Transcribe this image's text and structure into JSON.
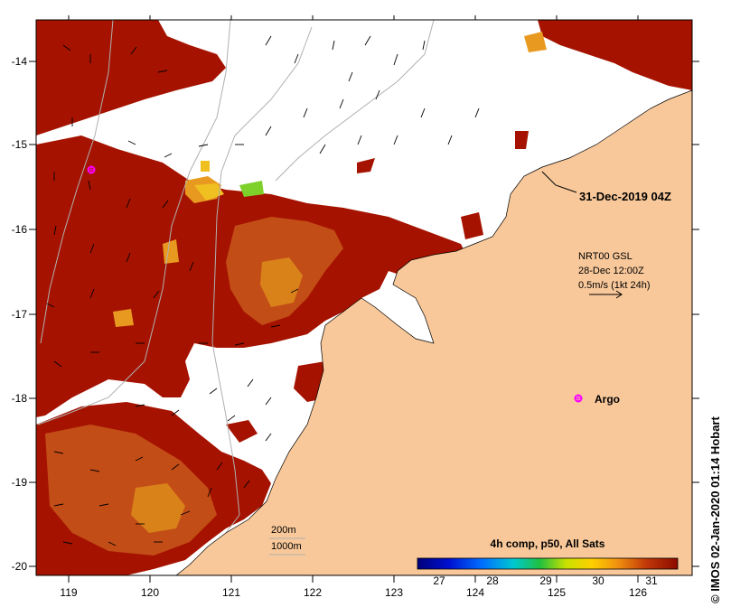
{
  "map": {
    "x_ticks": [
      "119",
      "120",
      "121",
      "122",
      "123",
      "124",
      "125",
      "126"
    ],
    "y_ticks": [
      "-14",
      "-15",
      "-16",
      "-17",
      "-18",
      "-19",
      "-20"
    ],
    "date_label": "31-Dec-2019 04Z",
    "argo_label": "Argo",
    "credit": "© IMOS 02-Jan-2020 01:14 Hobart"
  },
  "current_legend": {
    "line1": "NRT00 GSL",
    "line2": "28-Dec 12:00Z",
    "line3": "0.5m/s (1kt 24h)"
  },
  "contours": {
    "label1": "200m",
    "label2": "1000m"
  },
  "colorbar": {
    "title": "4h comp, p50, All Sats",
    "ticks": [
      "27",
      "28",
      "29",
      "30",
      "31"
    ]
  },
  "colors": {
    "land": "#f8c89a",
    "hot": "#a51300",
    "warm": "#c8581a",
    "orange": "#e89a20"
  }
}
